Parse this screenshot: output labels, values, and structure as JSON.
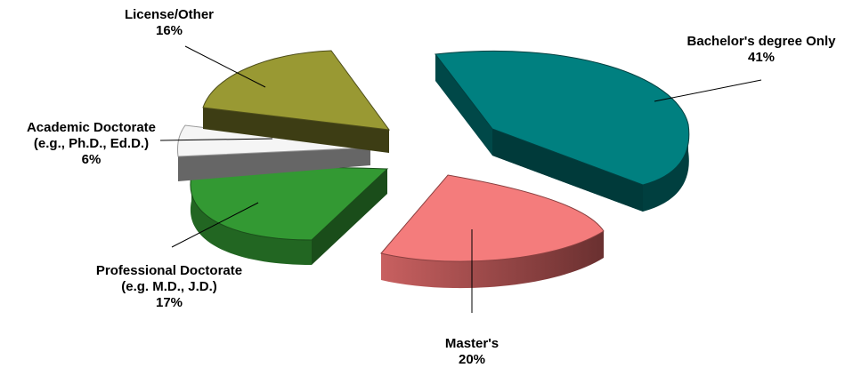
{
  "chart_data": {
    "type": "pie",
    "style": "3d-exploded",
    "slices": [
      {
        "label": "Bachelor's degree Only",
        "value_label": "41%",
        "value": 41,
        "color": "#008080"
      },
      {
        "label": "Master's",
        "value_label": "20%",
        "value": 20,
        "color": "#f47c7c"
      },
      {
        "label": "Professional Doctorate (e.g. M.D., J.D.)",
        "label_lines": [
          "Professional Doctorate",
          "(e.g. M.D., J.D.)"
        ],
        "value_label": "17%",
        "value": 17,
        "color": "#339933"
      },
      {
        "label": "Academic Doctorate (e.g., Ph.D., Ed.D.)",
        "label_lines": [
          "Academic Doctorate",
          "(e.g., Ph.D., Ed.D.)"
        ],
        "value_label": "6%",
        "value": 6,
        "color": "#f5f5f5"
      },
      {
        "label": "License/Other",
        "value_label": "16%",
        "value": 16,
        "color": "#999933"
      }
    ]
  }
}
